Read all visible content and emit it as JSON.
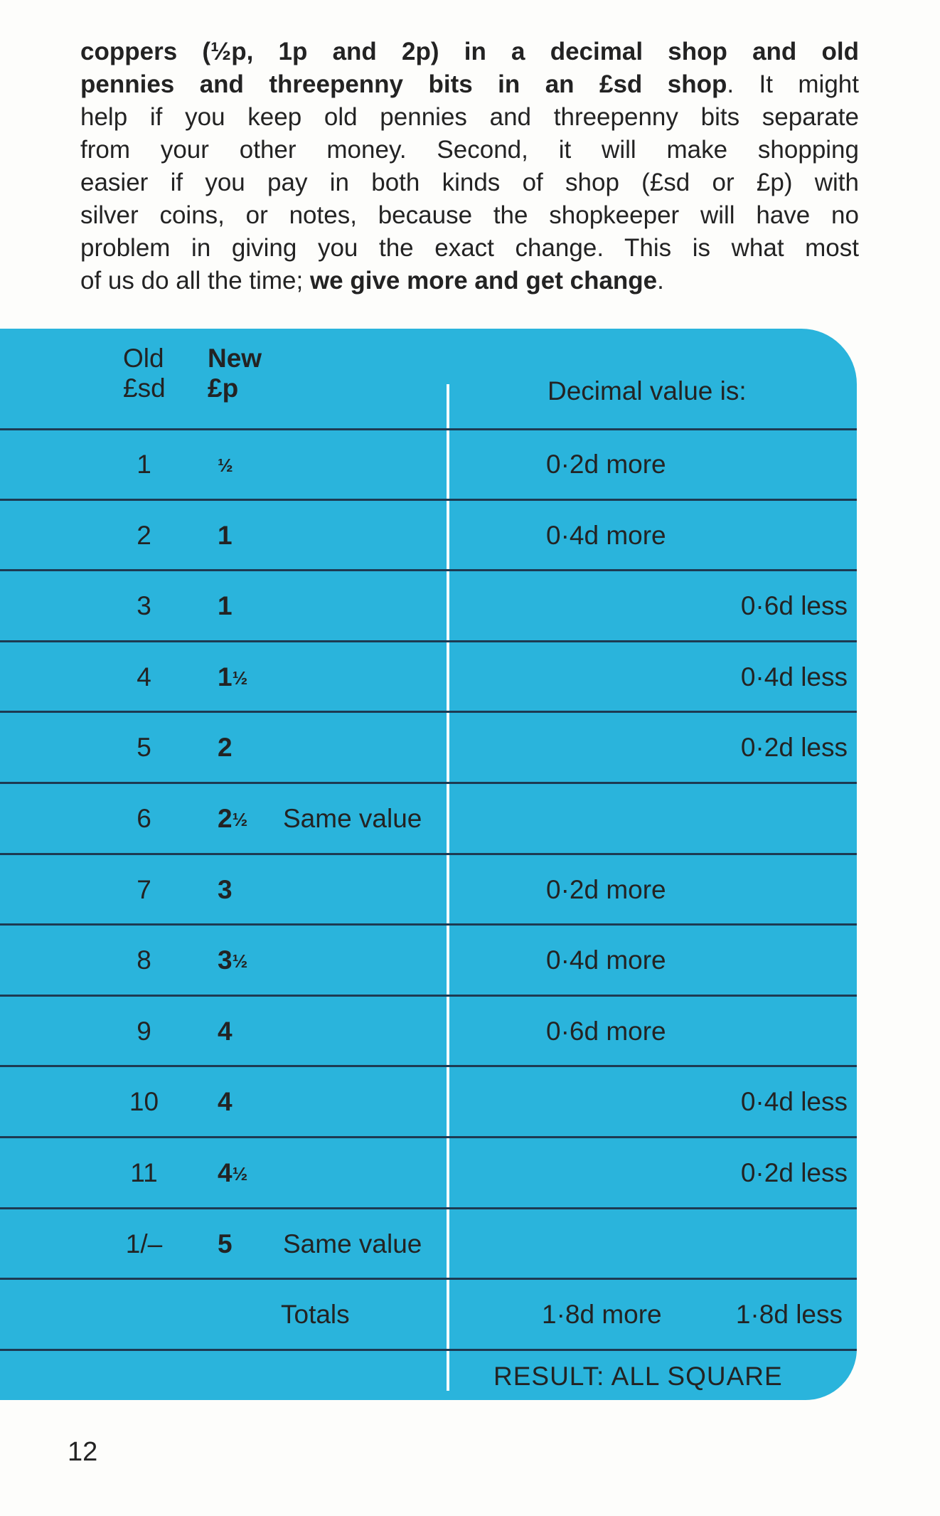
{
  "paragraph": [
    [
      {
        "text": "coppers (½p, 1p and 2p) in a decimal shop and old",
        "bold": true
      }
    ],
    [
      {
        "text": "pennies and threepenny bits in an £sd shop",
        "bold": true
      },
      {
        "text": ". It might",
        "bold": false
      }
    ],
    [
      {
        "text": "help if you keep old pennies and threepenny bits separate",
        "bold": false
      }
    ],
    [
      {
        "text": "from your other money. Second, it will make shopping",
        "bold": false
      }
    ],
    [
      {
        "text": "easier if you pay in both kinds of shop (£sd or £p) with",
        "bold": false
      }
    ],
    [
      {
        "text": "silver coins, or notes, because the shopkeeper will have no",
        "bold": false
      }
    ],
    [
      {
        "text": "problem in giving you the exact change. This is what most",
        "bold": false
      }
    ],
    [
      {
        "text": "of us do all the time; ",
        "bold": false
      },
      {
        "text": "we give more and get change",
        "bold": true
      },
      {
        "text": ".",
        "bold": false
      }
    ]
  ],
  "table": {
    "header": {
      "old_line1": "Old",
      "old_line2": "£sd",
      "new_line1": "New",
      "new_line2": "£p",
      "decimal": "Decimal value is:"
    },
    "rows": [
      {
        "old": "1",
        "new": "",
        "frac": "½",
        "note": "",
        "more": "0·2d more",
        "less": ""
      },
      {
        "old": "2",
        "new": "1",
        "frac": "",
        "note": "",
        "more": "0·4d more",
        "less": ""
      },
      {
        "old": "3",
        "new": "1",
        "frac": "",
        "note": "",
        "more": "",
        "less": "0·6d less"
      },
      {
        "old": "4",
        "new": "1",
        "frac": "½",
        "note": "",
        "more": "",
        "less": "0·4d less"
      },
      {
        "old": "5",
        "new": "2",
        "frac": "",
        "note": "",
        "more": "",
        "less": "0·2d less"
      },
      {
        "old": "6",
        "new": "2",
        "frac": "½",
        "note": "Same value",
        "more": "",
        "less": ""
      },
      {
        "old": "7",
        "new": "3",
        "frac": "",
        "note": "",
        "more": "0·2d more",
        "less": ""
      },
      {
        "old": "8",
        "new": "3",
        "frac": "½",
        "note": "",
        "more": "0·4d more",
        "less": ""
      },
      {
        "old": "9",
        "new": "4",
        "frac": "",
        "note": "",
        "more": "0·6d more",
        "less": ""
      },
      {
        "old": "10",
        "new": "4",
        "frac": "",
        "note": "",
        "more": "",
        "less": "0·4d less"
      },
      {
        "old": "11",
        "new": "4",
        "frac": "½",
        "note": "",
        "more": "",
        "less": "0·2d less"
      },
      {
        "old": "1/–",
        "new": "5",
        "frac": "",
        "note": "Same value",
        "more": "",
        "less": ""
      }
    ],
    "totals": {
      "label": "Totals",
      "more": "1·8d more",
      "less": "1·8d less"
    },
    "result": "RESULT: ALL SQUARE"
  },
  "page_number": "12",
  "colors": {
    "table_bg": "#2ab4dc",
    "rule": "#1d3a52",
    "text": "#232323"
  }
}
